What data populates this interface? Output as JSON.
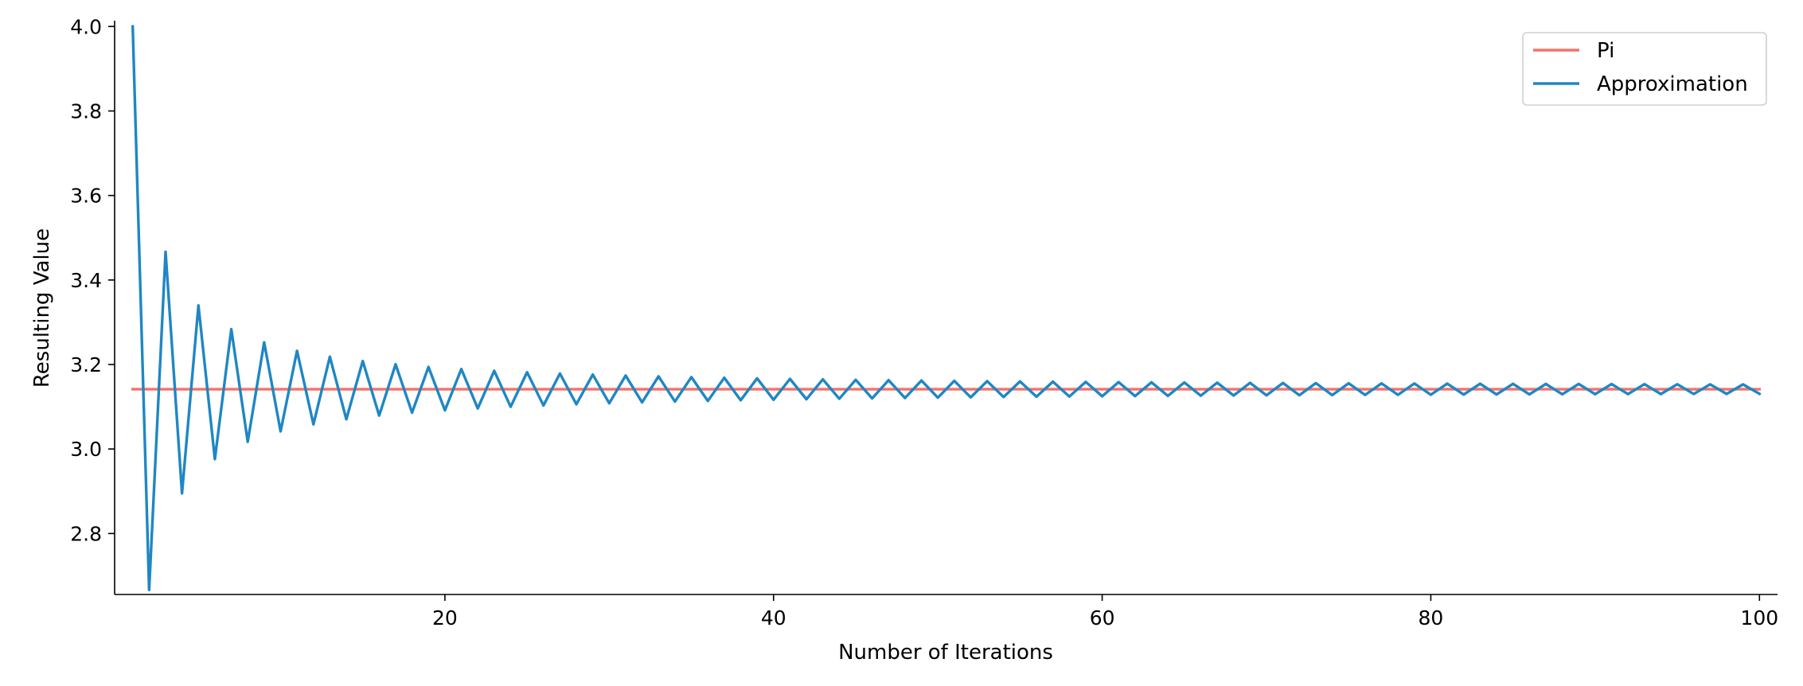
{
  "chart_data": {
    "type": "line",
    "xlabel": "Number of Iterations",
    "ylabel": "Resulting Value",
    "xlim": [
      -0.1,
      101.1
    ],
    "ylim": [
      2.6557,
      4.0137
    ],
    "xticks": [
      20,
      40,
      60,
      80,
      100
    ],
    "yticks": [
      2.8,
      3.0,
      3.2,
      3.4,
      3.6,
      3.8,
      4.0
    ],
    "xtick_labels": [
      "20",
      "40",
      "60",
      80,
      "100"
    ],
    "ytick_labels": [
      "2.8",
      "3.0",
      "3.2",
      "3.4",
      "3.6",
      "3.8",
      "4.0"
    ],
    "grid": false,
    "legend": "top-right",
    "series": [
      {
        "name": "Pi",
        "color": "#f4726a",
        "x": [
          1,
          100
        ],
        "y": [
          3.1416,
          3.1416
        ]
      },
      {
        "name": "Approximation",
        "color": "#1f87c3",
        "x_start": 1,
        "x_step": 1,
        "y": [
          4.0,
          2.6667,
          3.4667,
          2.8952,
          3.3397,
          2.976,
          3.2837,
          3.0171,
          3.2524,
          3.0418,
          3.2323,
          3.0584,
          3.2184,
          3.0703,
          3.2082,
          3.0792,
          3.2004,
          3.0861,
          3.1942,
          3.0916,
          3.1892,
          3.0961,
          3.1851,
          3.0999,
          3.1816,
          3.1031,
          3.1786,
          3.1059,
          3.1761,
          3.1083,
          3.1738,
          3.1104,
          3.1719,
          3.1123,
          3.1701,
          3.1139,
          3.1686,
          3.1154,
          3.1672,
          3.1166,
          3.1659,
          3.1178,
          3.1648,
          3.1189,
          3.1638,
          3.1198,
          3.1629,
          3.1207,
          3.1621,
          3.1216,
          3.1613,
          3.1223,
          3.1606,
          3.123,
          3.16,
          3.1237,
          3.1594,
          3.1242,
          3.1588,
          3.1248,
          3.1583,
          3.1253,
          3.1578,
          3.1258,
          3.1574,
          3.1262,
          3.157,
          3.1266,
          3.1566,
          3.127,
          3.1563,
          3.1273,
          3.1559,
          3.1276,
          3.1556,
          3.128,
          3.1553,
          3.1282,
          3.155,
          3.1285,
          3.1548,
          3.1288,
          3.1545,
          3.129,
          3.1543,
          3.1292,
          3.1541,
          3.1295,
          3.1539,
          3.1297,
          3.1537,
          3.1299,
          3.1535,
          3.1301,
          3.1533,
          3.1302,
          3.1531,
          3.1304,
          3.1529,
          3.1306
        ]
      }
    ]
  }
}
